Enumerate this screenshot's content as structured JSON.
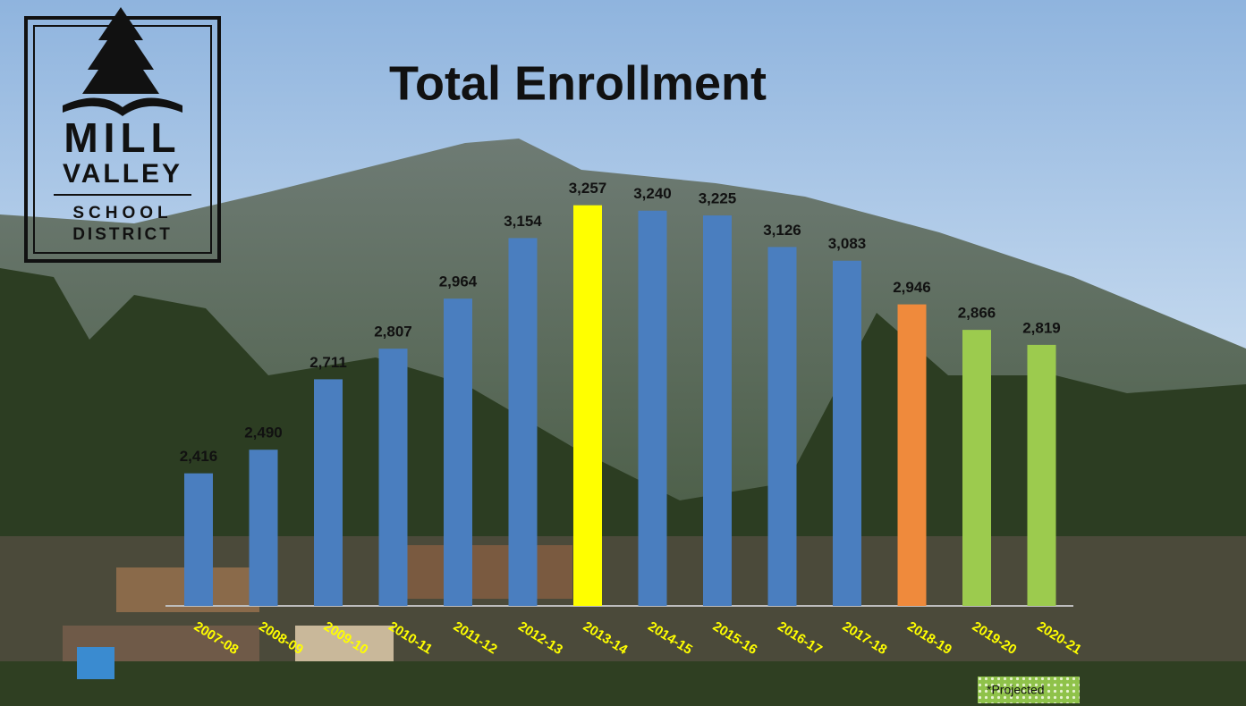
{
  "chart_data": {
    "type": "bar",
    "title": "Total Enrollment",
    "logo": [
      "MILL",
      "VALLEY",
      "SCHOOL",
      "DISTRICT"
    ],
    "note": "*Projected",
    "categories": [
      "2007-08",
      "2008-09",
      "2009-10",
      "2010-11",
      "2011-12",
      "2012-13",
      "2013-14",
      "2014-15",
      "2015-16",
      "2016-17",
      "2017-18",
      "2018-19",
      "2019-20",
      "2020-21"
    ],
    "values": [
      2416,
      2490,
      2711,
      2807,
      2964,
      3154,
      3257,
      3240,
      3225,
      3126,
      3083,
      2946,
      2866,
      2819
    ],
    "value_labels": [
      "2,416",
      "2,490",
      "2,711",
      "2,807",
      "2,964",
      "3,154",
      "3,257",
      "3,240",
      "3,225",
      "3,126",
      "3,083",
      "2,946",
      "2,866",
      "2,819"
    ],
    "colors": [
      "#4a7ebf",
      "#4a7ebf",
      "#4a7ebf",
      "#4a7ebf",
      "#4a7ebf",
      "#4a7ebf",
      "#ffff00",
      "#4a7ebf",
      "#4a7ebf",
      "#4a7ebf",
      "#4a7ebf",
      "#ef8a3c",
      "#9ccb4e",
      "#9ccb4e"
    ],
    "ylim": [
      2000,
      3500
    ]
  }
}
